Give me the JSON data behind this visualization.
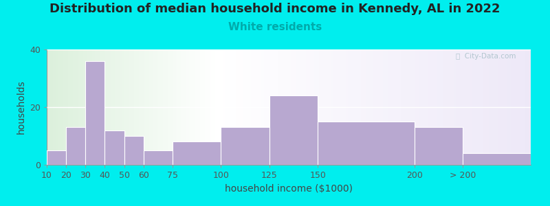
{
  "title": "Distribution of median household income in Kennedy, AL in 2022",
  "subtitle": "White residents",
  "xlabel": "household income ($1000)",
  "ylabel": "households",
  "background_color": "#00EEEE",
  "bar_color": "#b8a8d0",
  "bar_edgecolor": "#ffffff",
  "bin_edges": [
    10,
    20,
    30,
    40,
    50,
    60,
    75,
    100,
    125,
    150,
    200,
    225,
    260
  ],
  "bin_labels": [
    "10",
    "20",
    "30",
    "40",
    "50",
    "60",
    "75",
    "100",
    "125",
    "150",
    "200",
    "> 200"
  ],
  "tick_positions": [
    10,
    20,
    30,
    40,
    50,
    60,
    75,
    100,
    125,
    150,
    200,
    225
  ],
  "values": [
    5,
    13,
    36,
    12,
    10,
    5,
    8,
    13,
    24,
    15,
    13,
    4
  ],
  "ylim": [
    0,
    40
  ],
  "yticks": [
    0,
    20,
    40
  ],
  "title_fontsize": 13,
  "subtitle_fontsize": 11,
  "subtitle_color": "#00AAAA",
  "axis_label_fontsize": 10,
  "tick_fontsize": 9,
  "watermark_text": "ⓘ  City-Data.com",
  "watermark_color": "#a8bfc8"
}
